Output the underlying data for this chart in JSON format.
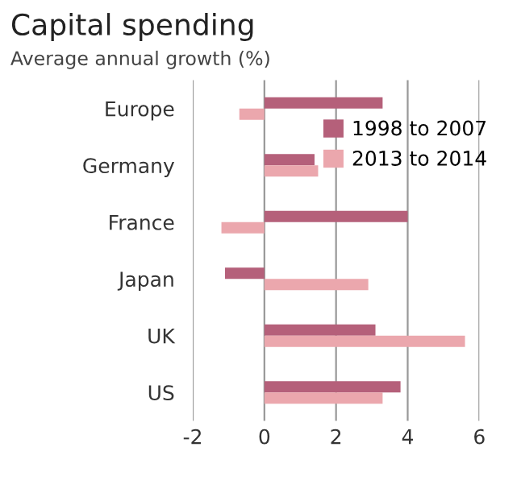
{
  "chart_data": {
    "type": "bar",
    "orientation": "horizontal",
    "title": "Capital spending",
    "subtitle": "Average annual growth (%)",
    "categories": [
      "Europe",
      "Germany",
      "France",
      "Japan",
      "UK",
      "US"
    ],
    "series": [
      {
        "name": "1998 to 2007",
        "color": "#b5607a",
        "values": [
          3.3,
          1.4,
          4.0,
          -1.1,
          3.1,
          3.8
        ]
      },
      {
        "name": "2013 to 2014",
        "color": "#eba7ad",
        "values": [
          -0.7,
          1.5,
          -1.2,
          2.9,
          5.6,
          3.3
        ]
      }
    ],
    "xlim": [
      -2,
      6
    ],
    "xticks": [
      {
        "value": -2,
        "label": "-2"
      },
      0,
      2,
      4,
      6
    ],
    "grid": "x",
    "legend": "top right"
  }
}
